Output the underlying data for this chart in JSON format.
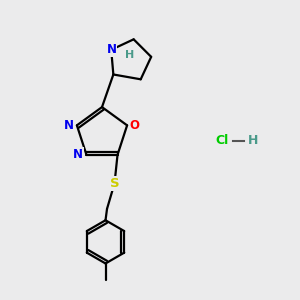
{
  "background_color": "#ebebec",
  "atom_colors": {
    "N": "#0000ee",
    "O": "#ff0000",
    "S": "#cccc00",
    "NH_N": "#0000ee",
    "NH_H": "#4a9a8a",
    "Cl": "#00cc00",
    "H_hcl": "#4a9a8a"
  },
  "line_color": "#000000",
  "lw": 1.6
}
